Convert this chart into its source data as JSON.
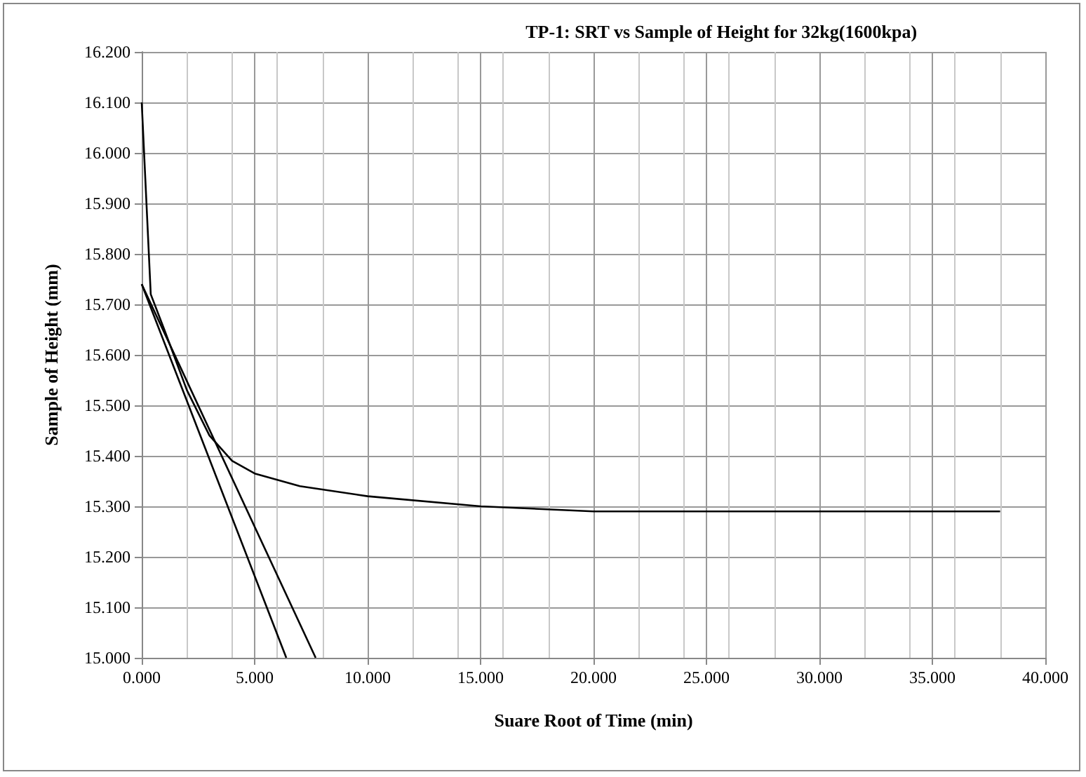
{
  "chart_data": {
    "type": "line",
    "title": "TP-1: SRT vs Sample of Height for 32kg(1600kpa)",
    "xlabel": "Suare Root of Time (min)",
    "ylabel": "Sample of Height (mm)",
    "series": [
      {
        "color": "#000000",
        "x": [
          0,
          0.4,
          1,
          2,
          3,
          4,
          5,
          7,
          10,
          15,
          20,
          25,
          30,
          38
        ],
        "values": [
          16.1,
          15.72,
          15.65,
          15.53,
          15.44,
          15.39,
          15.365,
          15.34,
          15.32,
          15.3,
          15.29,
          15.29,
          15.29,
          15.29
        ]
      },
      {
        "color": "#000000",
        "x": [
          0,
          6.4
        ],
        "values": [
          15.74,
          15.0
        ]
      },
      {
        "color": "#000000",
        "x": [
          0,
          7.7
        ],
        "values": [
          15.74,
          15.0
        ]
      }
    ],
    "xlim": [
      0,
      40
    ],
    "xticks": [
      {
        "value": 0,
        "label": "0.000"
      },
      {
        "value": 5,
        "label": "5.000"
      },
      {
        "value": 10,
        "label": "10.000"
      },
      {
        "value": 15,
        "label": "15.000"
      },
      {
        "value": 20,
        "label": "20.000"
      },
      {
        "value": 25,
        "label": "25.000"
      },
      {
        "value": 30,
        "label": "30.000"
      },
      {
        "value": 35,
        "label": "35.000"
      },
      {
        "value": 40,
        "label": "40.000"
      }
    ],
    "ylim": [
      15,
      16.2
    ],
    "yticks": [
      {
        "value": 15,
        "label": "15.000"
      },
      {
        "value": 15.1,
        "label": "15.100"
      },
      {
        "value": 15.2,
        "label": "15.200"
      },
      {
        "value": 15.3,
        "label": "15.300"
      },
      {
        "value": 15.4,
        "label": "15.400"
      },
      {
        "value": 15.5,
        "label": "15.500"
      },
      {
        "value": 15.6,
        "label": "15.600"
      },
      {
        "value": 15.7,
        "label": "15.700"
      },
      {
        "value": 15.8,
        "label": "15.800"
      },
      {
        "value": 15.9,
        "label": "15.900"
      },
      {
        "value": 16,
        "label": "16.000"
      },
      {
        "value": 16.1,
        "label": "16.100"
      },
      {
        "value": 16.2,
        "label": "16.200"
      }
    ],
    "grid": true,
    "marker": "none",
    "line_style": "solid"
  }
}
